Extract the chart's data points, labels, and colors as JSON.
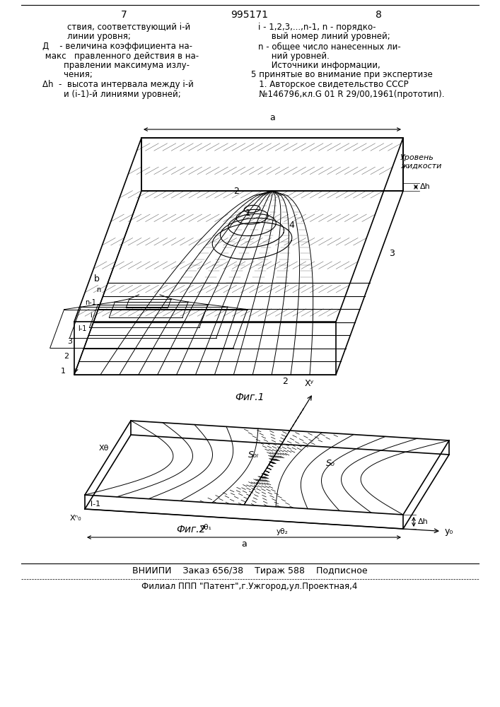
{
  "page_number_left": "7",
  "patent_number": "995171",
  "page_number_right": "8",
  "text_left_lines": [
    [
      "ствия, соответствующий i-й",
      95
    ],
    [
      "линии уровня;",
      95
    ],
    [
      "Д    - величина коэффициента на-",
      60
    ],
    [
      " макс   правленного действия в на-",
      60
    ],
    [
      "        правлении максимума излу-",
      60
    ],
    [
      "        чения;",
      60
    ],
    [
      "Δh  -  высота интервала между i-й",
      60
    ],
    [
      "        и (i-1)-й линиями уровней;",
      60
    ]
  ],
  "text_right_lines": [
    [
      "i - 1,2,3,...,n-1, n - порядко-",
      365
    ],
    [
      "     вый номер линий уровней;",
      365
    ],
    [
      "n - общее число нанесенных ли-",
      365
    ],
    [
      "     ний уровней.",
      365
    ],
    [
      "     Источники информации,",
      365
    ],
    [
      "5 принятые во внимание при экспертизе",
      355
    ],
    [
      "   1. Авторское свидетельство СССР",
      355
    ],
    [
      "   №146796,кл.G 01 R 29/00,1961(прототип).",
      355
    ]
  ],
  "fig1_caption": "Фиг.1",
  "fig2_caption": "Фиг.2",
  "footer_org": "ВНИИПИ    Заказ 656/38    Тираж 588    Подписное",
  "footer_address": "Филиал ППП \"Патент\",г.Ужгород,ул.Проектная,4",
  "bg_color": "#ffffff"
}
